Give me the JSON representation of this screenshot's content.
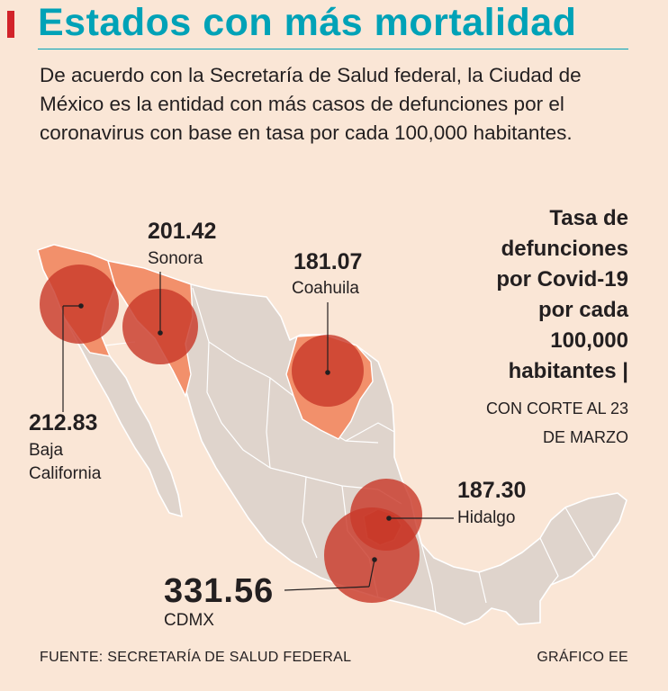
{
  "title": "Estados con más mortalidad",
  "intro": "De acuerdo con la Secretaría de Salud federal, la Ciudad de México es la entidad con más casos de defunciones por el coronavirus con base en tasa por cada 100,000 habitantes.",
  "legend": {
    "heading": [
      "Tasa de",
      "defunciones",
      "por Covid-19",
      "por cada",
      "100,000",
      "habitantes |"
    ],
    "subtitle": [
      "CON CORTE AL 23",
      "DE MARZO"
    ]
  },
  "states": [
    {
      "name": "Sonora",
      "value": "201.42"
    },
    {
      "name": "Coahuila",
      "value": "181.07"
    },
    {
      "name_lines": [
        "Baja",
        "California"
      ],
      "value": "212.83"
    },
    {
      "name": "Hidalgo",
      "value": "187.30"
    },
    {
      "name": "CDMX",
      "value": "331.56"
    }
  ],
  "colors": {
    "background": "#fae6d6",
    "title": "#00a2b7",
    "land": "#dfd4cc",
    "highlight_state": "#f2906b",
    "bubble": "#c93a2b"
  },
  "footer": {
    "source": "FUENTE: SECRETARÍA DE SALUD FEDERAL",
    "credit": "GRÁFICO EE"
  }
}
